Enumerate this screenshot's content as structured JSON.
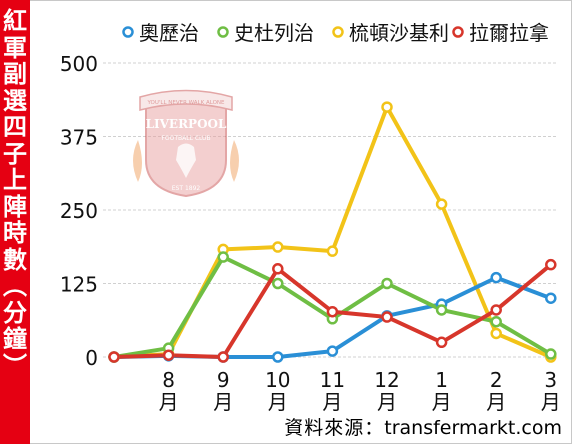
{
  "title_chars": [
    "紅",
    "軍",
    "副",
    "選",
    "四",
    "子",
    "上",
    "陣",
    "時",
    "數",
    "︵",
    "分",
    "鐘",
    "︶"
  ],
  "chart_data": {
    "type": "line",
    "title": "紅軍副選四子上陣時數（分鐘）",
    "categories": [
      "",
      "8月",
      "9月",
      "10月",
      "11月",
      "12月",
      "1月",
      "2月",
      "3月"
    ],
    "ylim": [
      0,
      500
    ],
    "yticks": [
      0,
      125,
      250,
      375,
      500
    ],
    "grid": true,
    "legend_position": "top",
    "series": [
      {
        "name": "奧歷治",
        "color": "#2a8fd6",
        "values": [
          0,
          2,
          0,
          0,
          10,
          70,
          90,
          135,
          100
        ]
      },
      {
        "name": "史杜列治",
        "color": "#6fbe44",
        "values": [
          0,
          15,
          170,
          125,
          65,
          125,
          80,
          60,
          5
        ]
      },
      {
        "name": "梳頓沙基利",
        "color": "#f2c318",
        "values": [
          0,
          5,
          183,
          187,
          180,
          425,
          260,
          40,
          0
        ]
      },
      {
        "name": "拉爾拉拿",
        "color": "#d7362b",
        "values": [
          0,
          3,
          0,
          150,
          77,
          68,
          25,
          80,
          157
        ]
      }
    ]
  },
  "logo": {
    "name": "Liverpool crest",
    "text": [
      "YOU'LL NEVER WALK ALONE",
      "LIVERPOOL",
      "FOOTBALL CLUB",
      "EST 1892"
    ]
  },
  "source": {
    "label": "資料來源：",
    "site": "transfermarkt.com"
  }
}
